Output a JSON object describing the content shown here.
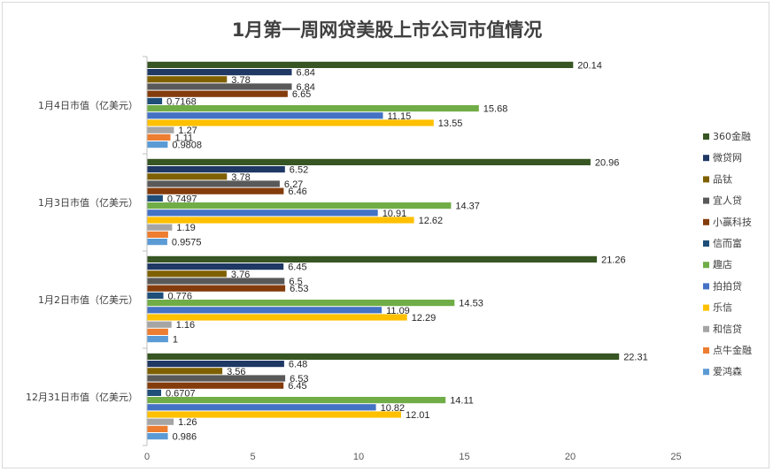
{
  "chart_data": {
    "type": "bar",
    "orientation": "horizontal",
    "title": "1月第一周网贷美股上市公司市值情况",
    "xlabel": "",
    "ylabel": "",
    "xlim": [
      0,
      25
    ],
    "xticks": [
      0,
      5,
      10,
      15,
      20,
      25
    ],
    "grid": false,
    "legend_position": "right",
    "categories": [
      "1月4日市值（亿美元）",
      "1月3日市值（亿美元）",
      "1月2日市值（亿美元）",
      "12月31日市值（亿美元）"
    ],
    "series": [
      {
        "name": "360金融",
        "color": "#375623",
        "values": [
          20.14,
          20.96,
          21.26,
          22.31
        ],
        "labels": [
          "20.14",
          "20.96",
          "21.26",
          "22.31"
        ]
      },
      {
        "name": "微贷网",
        "color": "#1F3864",
        "values": [
          6.84,
          6.52,
          6.45,
          6.48
        ],
        "labels": [
          "6.84",
          "6.52",
          "6.45",
          "6.48"
        ]
      },
      {
        "name": "品钛",
        "color": "#7F6000",
        "values": [
          3.78,
          3.78,
          3.76,
          3.56
        ],
        "labels": [
          "3.78",
          "3.78",
          "3.76",
          "3.56"
        ]
      },
      {
        "name": "宜人贷",
        "color": "#595959",
        "values": [
          6.84,
          6.27,
          6.5,
          6.53
        ],
        "labels": [
          "6.84",
          "6.27",
          "6.5",
          "6.53"
        ]
      },
      {
        "name": "小赢科技",
        "color": "#843C0C",
        "values": [
          6.65,
          6.46,
          6.53,
          6.45
        ],
        "labels": [
          "6.65",
          "6.46",
          "6.53",
          "6.45"
        ]
      },
      {
        "name": "信而富",
        "color": "#1F4E79",
        "values": [
          0.7168,
          0.7497,
          0.776,
          0.6707
        ],
        "labels": [
          "0.7168",
          "0.7497",
          "0.776",
          "0.6707"
        ]
      },
      {
        "name": "趣店",
        "color": "#70AD47",
        "values": [
          15.68,
          14.37,
          14.53,
          14.11
        ],
        "labels": [
          "15.68",
          "14.37",
          "14.53",
          "14.11"
        ]
      },
      {
        "name": "拍拍贷",
        "color": "#4472C4",
        "values": [
          11.15,
          10.91,
          11.09,
          10.82
        ],
        "labels": [
          "11.15",
          "10.91",
          "11.09",
          "10.82"
        ]
      },
      {
        "name": "乐信",
        "color": "#FFC000",
        "values": [
          13.55,
          12.62,
          12.29,
          12.01
        ],
        "labels": [
          "13.55",
          "12.62",
          "12.29",
          "12.01"
        ]
      },
      {
        "name": "和信贷",
        "color": "#A5A5A5",
        "values": [
          1.27,
          1.19,
          1.16,
          1.26
        ],
        "labels": [
          "1.27",
          "1.19",
          "1.16",
          "1.26"
        ]
      },
      {
        "name": "点牛金融",
        "color": "#ED7D31",
        "values": [
          1.11,
          1.0,
          1.0,
          0.98
        ],
        "labels": [
          "1.11",
          "",
          "",
          ""
        ]
      },
      {
        "name": "爱鸿森",
        "color": "#5B9BD5",
        "values": [
          0.9808,
          0.9575,
          1,
          0.986
        ],
        "labels": [
          "0.9808",
          "0.9575",
          "1",
          "0.986"
        ]
      }
    ]
  }
}
